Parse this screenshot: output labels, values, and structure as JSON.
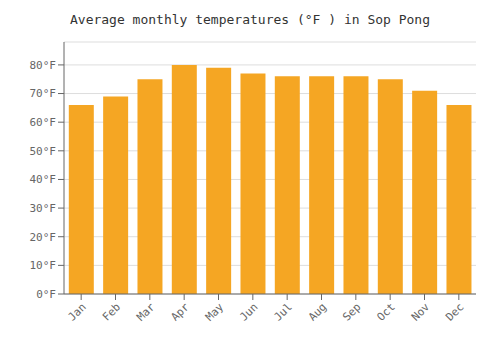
{
  "chart_data": {
    "type": "bar",
    "title": "Average monthly temperatures (°F ) in Sop Pong",
    "categories": [
      "Jan",
      "Feb",
      "Mar",
      "Apr",
      "May",
      "Jun",
      "Jul",
      "Aug",
      "Sep",
      "Oct",
      "Nov",
      "Dec"
    ],
    "values": [
      66,
      69,
      75,
      80,
      79,
      77,
      76,
      76,
      76,
      75,
      71,
      66
    ],
    "color": "#F5A623",
    "ylim": [
      0,
      88
    ],
    "yticks": [
      {
        "value": 0,
        "label": "0°F"
      },
      {
        "value": 10,
        "label": "10°F"
      },
      {
        "value": 20,
        "label": "20°F"
      },
      {
        "value": 30,
        "label": "30°F"
      },
      {
        "value": 40,
        "label": "40°F"
      },
      {
        "value": 50,
        "label": "50°F"
      },
      {
        "value": 60,
        "label": "60°F"
      },
      {
        "value": 70,
        "label": "70°F"
      },
      {
        "value": 80,
        "label": "80°F"
      }
    ],
    "grid": true
  }
}
